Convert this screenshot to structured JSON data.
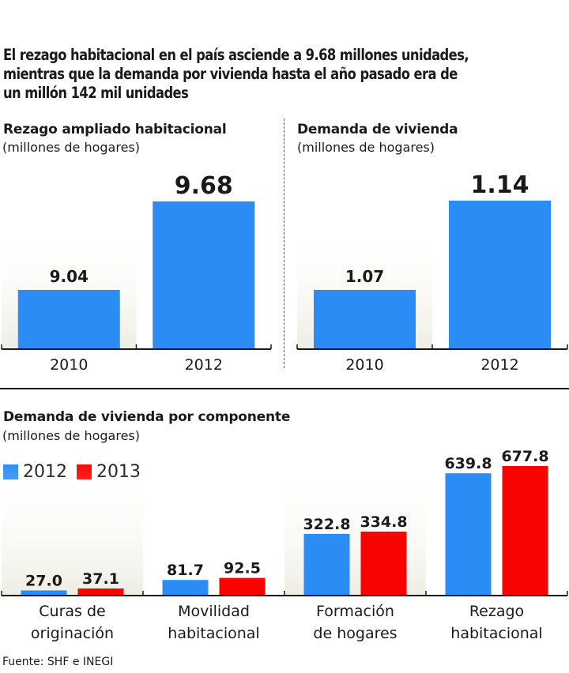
{
  "headline": "El rezago habitacional en el país asciende a 9.68 millones unidades,\nmientras que la demanda por vivienda hasta el año pasado era de\nun millón 142 mil unidades",
  "source": "Fuente: SHF e INEGI",
  "colors": {
    "blue": "#2b8cf6",
    "red": "#fa0200",
    "axis": "#1a1a1a",
    "text": "#1a1a1a"
  },
  "chart_data": [
    {
      "type": "bar",
      "title": "Rezago ampliado habitacional",
      "subtitle": "(millones de hogares)",
      "categories": [
        "2010",
        "2012"
      ],
      "values": [
        9.04,
        9.68
      ],
      "labels": [
        "9.04",
        "9.68"
      ],
      "xlabel": "",
      "ylabel": "millones de hogares",
      "grid": false
    },
    {
      "type": "bar",
      "title": "Demanda de vivienda",
      "subtitle": "(millones de hogares)",
      "categories": [
        "2010",
        "2012"
      ],
      "values": [
        1.07,
        1.14
      ],
      "labels": [
        "1.07",
        "1.14"
      ],
      "xlabel": "",
      "ylabel": "millones de hogares",
      "grid": false
    },
    {
      "type": "bar",
      "title": "Demanda de vivienda por componente",
      "subtitle": "(millones de hogares)",
      "categories": [
        "Curas de\noriginación",
        "Movilidad\nhabitacional",
        "Formación\nde hogares",
        "Rezago\nhabitacional"
      ],
      "series": [
        {
          "name": "2012",
          "values": [
            27.0,
            81.7,
            322.8,
            639.8
          ],
          "labels": [
            "27.0",
            "81.7",
            "322.8",
            "639.8"
          ]
        },
        {
          "name": "2013",
          "values": [
            37.1,
            92.5,
            334.8,
            677.8
          ],
          "labels": [
            "37.1",
            "92.5",
            "334.8",
            "677.8"
          ]
        }
      ],
      "legend": "top-left",
      "grid": false
    }
  ]
}
